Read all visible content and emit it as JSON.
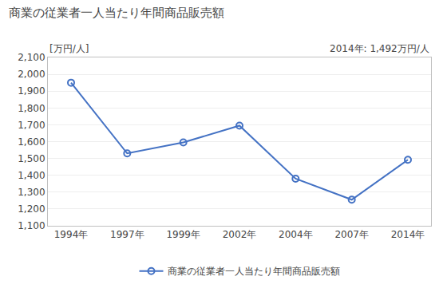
{
  "chart_data": {
    "type": "line",
    "title": "商業の従業者一人当たり年間商品販売額",
    "ylabel": "[万円/人]",
    "annotation": "2014年: 1,492万円/人",
    "categories": [
      "1994年",
      "1997年",
      "1999年",
      "2002年",
      "2004年",
      "2007年",
      "2014年"
    ],
    "series": [
      {
        "name": "商業の従業者一人当たり年間商品販売額",
        "color": "#4472C4",
        "marker": "circle-open",
        "values": [
          1950,
          1530,
          1595,
          1695,
          1380,
          1255,
          1492
        ]
      }
    ],
    "ylim": [
      1100,
      2100
    ],
    "yticks": [
      {
        "value": 1100,
        "label": "1,100"
      },
      {
        "value": 1200,
        "label": "1,200"
      },
      {
        "value": 1300,
        "label": "1,300"
      },
      {
        "value": 1400,
        "label": "1,400"
      },
      {
        "value": 1500,
        "label": "1,500"
      },
      {
        "value": 1600,
        "label": "1,600"
      },
      {
        "value": 1700,
        "label": "1,700"
      },
      {
        "value": 1800,
        "label": "1,800"
      },
      {
        "value": 1900,
        "label": "1,900"
      },
      {
        "value": 2000,
        "label": "2,000"
      },
      {
        "value": 2100,
        "label": "2,100"
      }
    ],
    "grid": true,
    "legend": "bottom"
  }
}
